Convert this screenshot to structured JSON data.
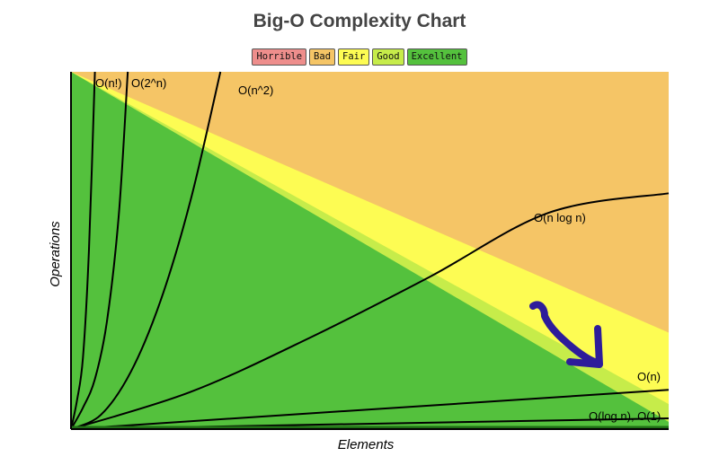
{
  "chart_data": {
    "type": "area",
    "title": "Big-O Complexity Chart",
    "xlabel": "Elements",
    "ylabel": "Operations",
    "xlim": [
      0,
      100
    ],
    "ylim": [
      0,
      100
    ],
    "grid": false,
    "legend_position": "top-center",
    "legend": [
      {
        "label": "Horrible",
        "color": "#ee8e8c"
      },
      {
        "label": "Bad",
        "color": "#f5c566"
      },
      {
        "label": "Fair",
        "color": "#fdfc53"
      },
      {
        "label": "Good",
        "color": "#c6ec4a"
      },
      {
        "label": "Excellent",
        "color": "#54c13d"
      }
    ],
    "regions": [
      {
        "name": "Horrible",
        "color": "#ee8e8c",
        "upper_at_x100": 100
      },
      {
        "name": "Bad",
        "color": "#f5c566",
        "upper_at_x100": 100
      },
      {
        "name": "Fair",
        "color": "#fdfc53",
        "upper_at_x100": 27
      },
      {
        "name": "Good",
        "color": "#c6ec4a",
        "upper_at_x100": 7
      },
      {
        "name": "Excellent",
        "color": "#54c13d",
        "upper_at_x100": 2
      }
    ],
    "series": [
      {
        "name": "O(n!)",
        "label": "O(n!)",
        "x": [
          0,
          1,
          2,
          3,
          4
        ],
        "y": [
          0,
          8,
          20,
          50,
          100
        ]
      },
      {
        "name": "O(2^n)",
        "label": "O(2^n)",
        "x": [
          0,
          2,
          4,
          6,
          8,
          9.5
        ],
        "y": [
          0,
          6,
          14,
          30,
          60,
          100
        ]
      },
      {
        "name": "O(n^2)",
        "label": "O(n^2)",
        "x": [
          0,
          5,
          10,
          15,
          20,
          25
        ],
        "y": [
          0,
          4,
          16,
          36,
          64,
          100
        ]
      },
      {
        "name": "O(n log n)",
        "label": "O(n log n)",
        "x": [
          0,
          20,
          40,
          60,
          80,
          100
        ],
        "y": [
          0,
          10.4,
          25.6,
          42.6,
          60.6,
          66
        ]
      },
      {
        "name": "O(n)",
        "label": "O(n)",
        "x": [
          0,
          100
        ],
        "y": [
          0,
          11
        ]
      },
      {
        "name": "O(log n)",
        "label": "O(log n), O(1)",
        "x": [
          0,
          100
        ],
        "y": [
          0,
          3
        ]
      },
      {
        "name": "O(1)",
        "label": "",
        "x": [
          0,
          100
        ],
        "y": [
          0.5,
          0.5
        ]
      }
    ]
  },
  "annotation": {
    "color": "#2e1c9a"
  }
}
